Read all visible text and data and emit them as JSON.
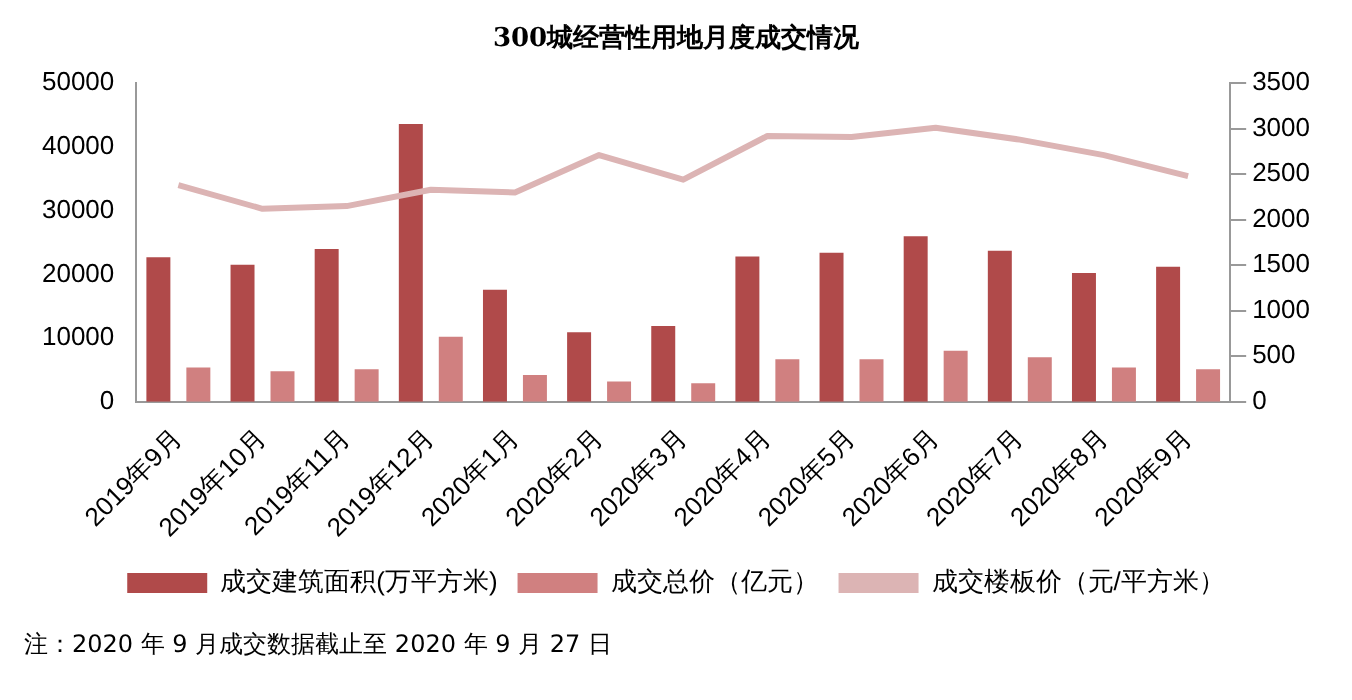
{
  "chart_data": {
    "type": "bar",
    "title": "300城经营性用地月度成交情况",
    "categories": [
      "2019年9月",
      "2019年10月",
      "2019年11月",
      "2019年12月",
      "2020年1月",
      "2020年2月",
      "2020年3月",
      "2020年4月",
      "2020年5月",
      "2020年6月",
      "2020年7月",
      "2020年8月",
      "2020年9月"
    ],
    "series": [
      {
        "name": "成交建筑面积(万平方米)",
        "color": "#b04a4a",
        "values": [
          22700,
          21500,
          24000,
          43600,
          17600,
          10900,
          11900,
          22800,
          23400,
          26000,
          23700,
          20200,
          21200
        ]
      },
      {
        "name": "成交总价（亿元）",
        "color": "#d08080",
        "values": [
          5400,
          4800,
          5100,
          10200,
          4200,
          3200,
          2900,
          6700,
          6700,
          8000,
          7000,
          5400,
          5100
        ]
      },
      {
        "name": "成交楼板价（元/平方米）",
        "type": "line",
        "axis": "y2",
        "color": "#dcb4b4",
        "marker": "none",
        "values": [
          2380,
          2120,
          2150,
          2330,
          2300,
          2710,
          2440,
          2920,
          2910,
          3010,
          2880,
          2710,
          2480
        ]
      }
    ],
    "ylim": [
      0,
      50000
    ],
    "yticks": [
      0,
      10000,
      20000,
      30000,
      40000,
      50000
    ],
    "y2lim": [
      0,
      3500
    ],
    "y2ticks": [
      0,
      500,
      1000,
      1500,
      2000,
      2500,
      3000,
      3500
    ],
    "grid": false,
    "legend": "bottom",
    "annotations": [
      "注：2020 年 9 月成交数据截止至 2020 年 9 月 27 日"
    ]
  }
}
